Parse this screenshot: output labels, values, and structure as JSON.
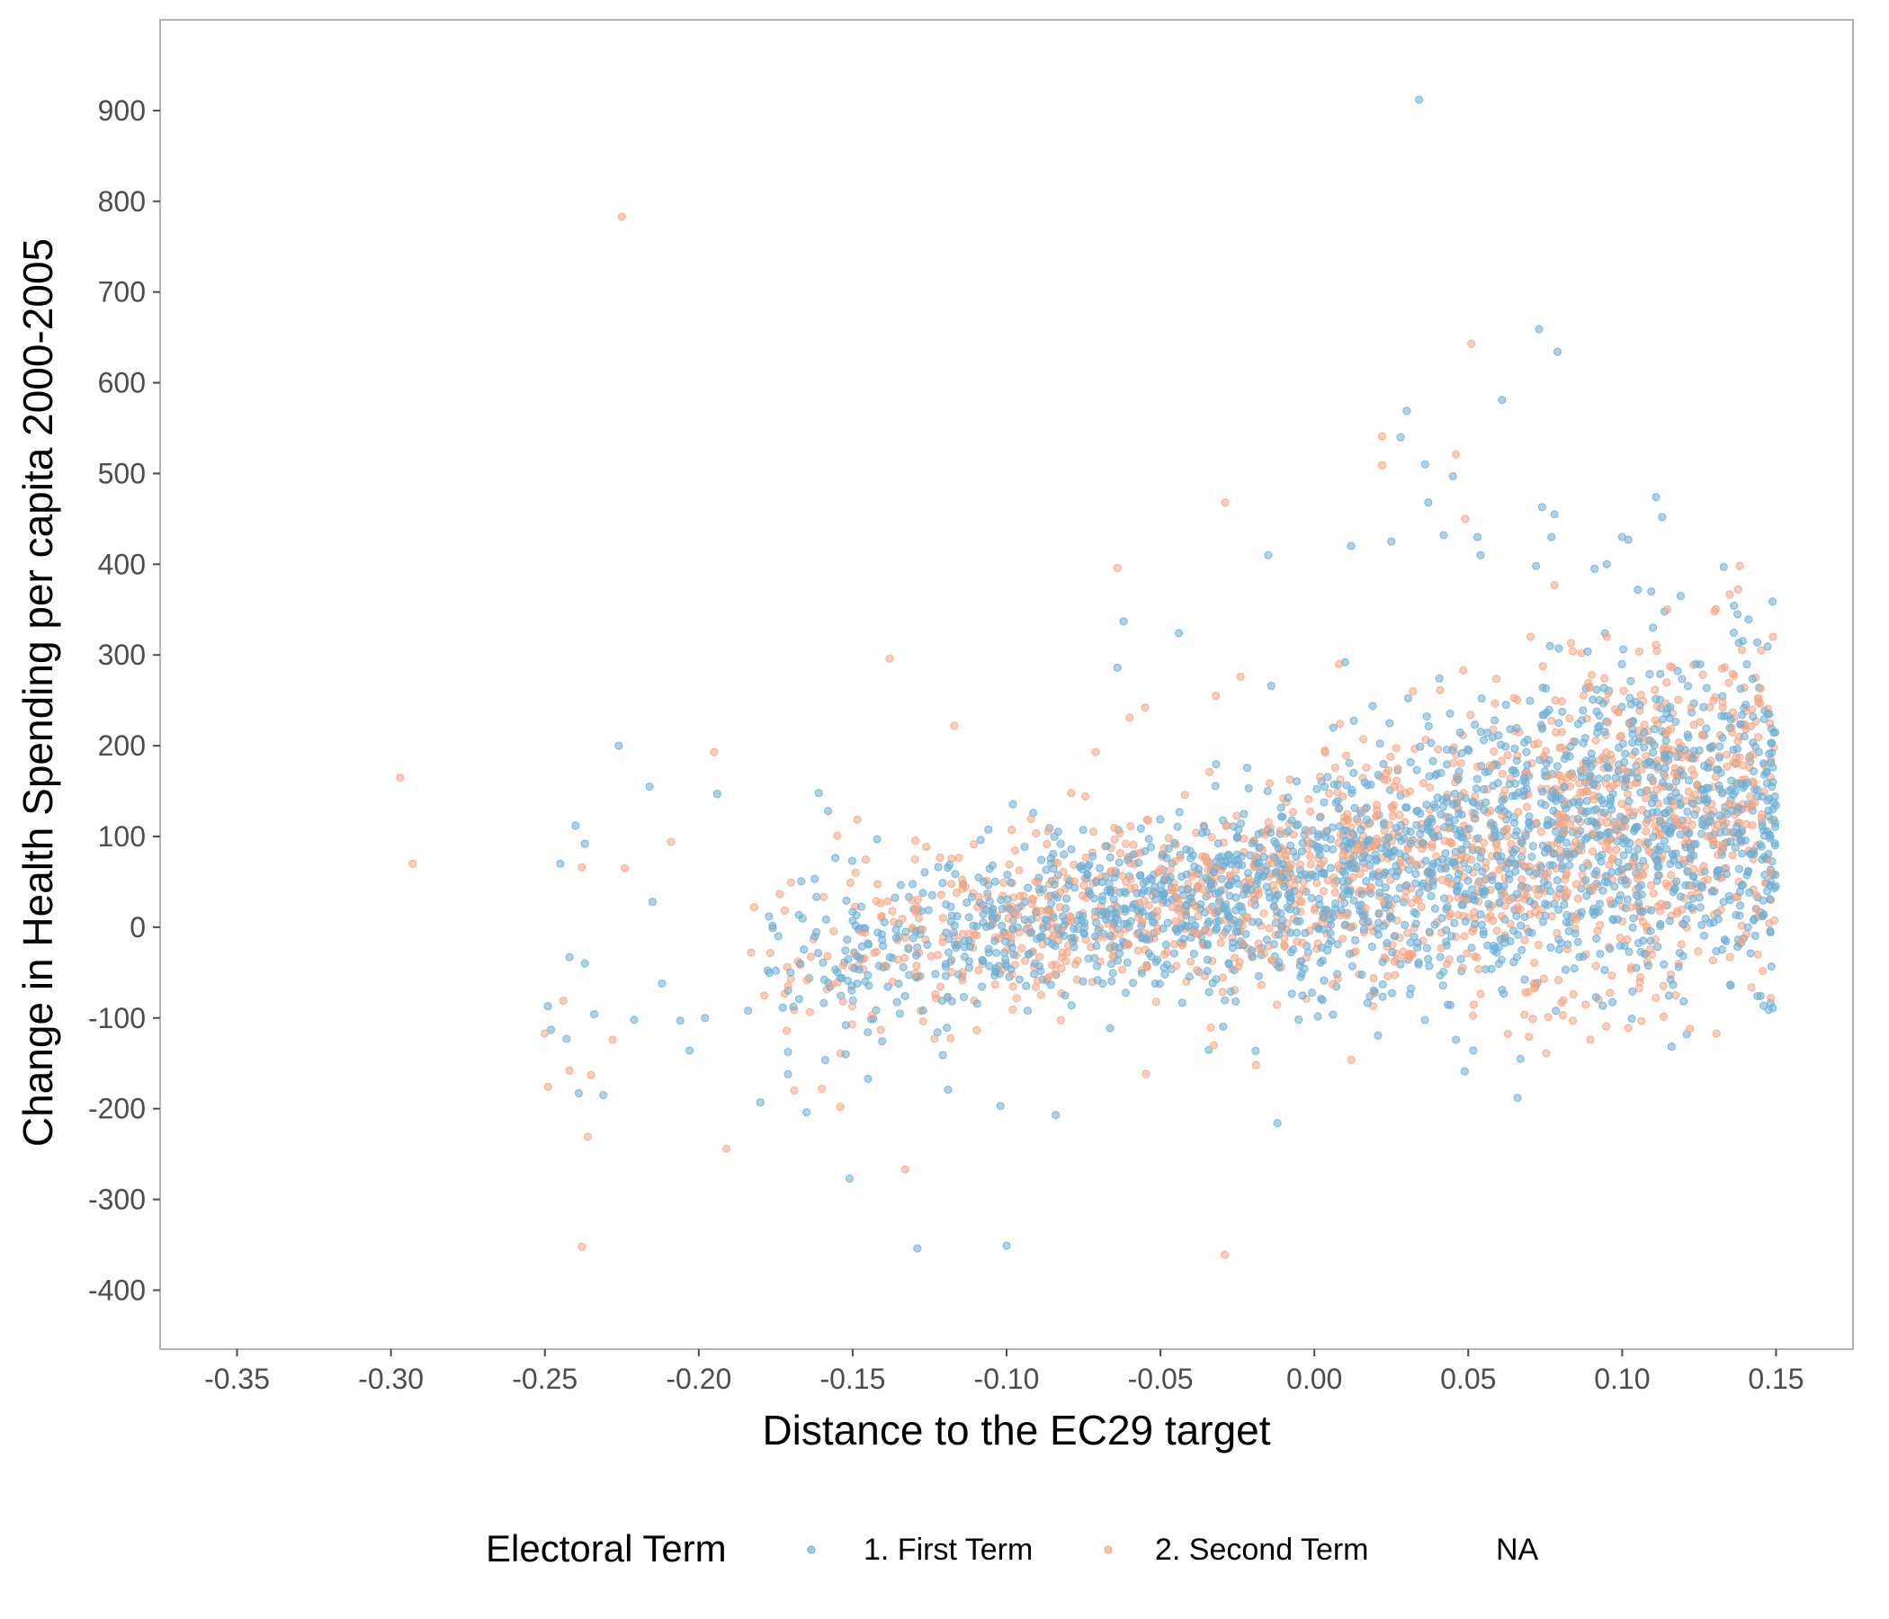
{
  "chart_data": {
    "type": "scatter",
    "xlabel": "Distance to the EC29 target",
    "ylabel": "Change in Health Spending per capita 2000-2005",
    "xlim": [
      -0.375,
      0.175
    ],
    "ylim": [
      -465,
      1000
    ],
    "x_ticks": [
      "-0.35",
      "-0.30",
      "-0.25",
      "-0.20",
      "-0.15",
      "-0.10",
      "-0.05",
      "0.00",
      "0.05",
      "0.10",
      "0.15"
    ],
    "y_ticks": [
      "-400",
      "-300",
      "-200",
      "-100",
      "0",
      "100",
      "200",
      "300",
      "400",
      "500",
      "600",
      "700",
      "800",
      "900"
    ],
    "grid": false,
    "legend": {
      "title": "Electoral Term",
      "position": "bottom",
      "entries": [
        "1. First Term",
        "2. Second Term",
        "NA"
      ]
    },
    "colors": {
      "first_term": "#6baed6",
      "second_term": "#f4a582",
      "panel_border": "#b3b3b3"
    },
    "generated_point_counts": {
      "first_term": 2000,
      "second_term": 1500
    },
    "series": [
      {
        "name": "1. First Term",
        "color": "#6baed6",
        "points": [
          [
            0.034,
            912
          ],
          [
            0.073,
            659
          ],
          [
            0.079,
            634
          ],
          [
            0.061,
            581
          ],
          [
            0.03,
            569
          ],
          [
            0.028,
            540
          ],
          [
            0.036,
            510
          ],
          [
            0.045,
            497
          ],
          [
            0.111,
            474
          ],
          [
            0.074,
            463
          ],
          [
            0.078,
            455
          ],
          [
            0.113,
            452
          ],
          [
            0.037,
            468
          ],
          [
            0.1,
            430
          ],
          [
            0.077,
            430
          ],
          [
            0.042,
            432
          ],
          [
            0.053,
            430
          ],
          [
            0.025,
            425
          ],
          [
            0.012,
            420
          ],
          [
            -0.015,
            410
          ],
          [
            0.054,
            410
          ],
          [
            0.102,
            427
          ],
          [
            0.133,
            397
          ],
          [
            0.095,
            400
          ],
          [
            0.072,
            398
          ],
          [
            -0.062,
            337
          ],
          [
            -0.044,
            324
          ],
          [
            0.11,
            330
          ],
          [
            0.119,
            365
          ],
          [
            0.01,
            292
          ],
          [
            -0.014,
            266
          ],
          [
            -0.064,
            286
          ],
          [
            0.091,
            395
          ],
          [
            0.124,
            290
          ],
          [
            -0.226,
            200
          ],
          [
            -0.216,
            155
          ],
          [
            -0.194,
            147
          ],
          [
            -0.161,
            148
          ],
          [
            -0.158,
            128
          ],
          [
            -0.237,
            92
          ],
          [
            -0.24,
            112
          ],
          [
            -0.245,
            70
          ],
          [
            -0.215,
            28
          ],
          [
            -0.249,
            -87
          ],
          [
            -0.248,
            -113
          ],
          [
            -0.243,
            -123
          ],
          [
            -0.242,
            -33
          ],
          [
            -0.237,
            -40
          ],
          [
            -0.234,
            -96
          ],
          [
            -0.221,
            -102
          ],
          [
            -0.212,
            -62
          ],
          [
            -0.206,
            -103
          ],
          [
            -0.203,
            -136
          ],
          [
            -0.198,
            -100
          ],
          [
            -0.239,
            -183
          ],
          [
            -0.231,
            -185
          ],
          [
            -0.18,
            -193
          ],
          [
            -0.171,
            -162
          ],
          [
            -0.165,
            -204
          ],
          [
            -0.151,
            -277
          ],
          [
            -0.129,
            -354
          ],
          [
            -0.1,
            -351
          ],
          [
            -0.012,
            -216
          ],
          [
            0.066,
            -188
          ],
          [
            0.067,
            -145
          ],
          [
            0.121,
            -118
          ],
          [
            0.046,
            -124
          ],
          [
            0.061,
            -69
          ],
          [
            0.146,
            14
          ],
          [
            0.148,
            98
          ],
          [
            0.149,
            130
          ],
          [
            0.149,
            160
          ],
          [
            -0.084,
            -207
          ],
          [
            -0.102,
            -197
          ],
          [
            -0.119,
            -179
          ],
          [
            -0.145,
            -167
          ],
          [
            -0.184,
            -92
          ],
          [
            -0.175,
            -48
          ],
          [
            -0.167,
            -40
          ]
        ]
      },
      {
        "name": "2. Second Term",
        "color": "#f4a582",
        "points": [
          [
            -0.225,
            783
          ],
          [
            0.051,
            643
          ],
          [
            0.022,
            541
          ],
          [
            0.046,
            521
          ],
          [
            0.022,
            509
          ],
          [
            -0.029,
            468
          ],
          [
            0.049,
            450
          ],
          [
            -0.064,
            396
          ],
          [
            0.078,
            377
          ],
          [
            0.13,
            348
          ],
          [
            0.149,
            320
          ],
          [
            0.145,
            263
          ],
          [
            -0.138,
            296
          ],
          [
            -0.195,
            193
          ],
          [
            -0.297,
            165
          ],
          [
            -0.293,
            70
          ],
          [
            -0.238,
            66
          ],
          [
            -0.224,
            65
          ],
          [
            -0.209,
            94
          ],
          [
            -0.149,
            60
          ],
          [
            -0.182,
            22
          ],
          [
            -0.25,
            -117
          ],
          [
            -0.249,
            -176
          ],
          [
            -0.244,
            -81
          ],
          [
            -0.242,
            -158
          ],
          [
            -0.235,
            -163
          ],
          [
            -0.228,
            -124
          ],
          [
            -0.236,
            -231
          ],
          [
            -0.238,
            -352
          ],
          [
            -0.191,
            -244
          ],
          [
            -0.183,
            -28
          ],
          [
            -0.169,
            -180
          ],
          [
            -0.16,
            -178
          ],
          [
            -0.154,
            -198
          ],
          [
            -0.133,
            -267
          ],
          [
            -0.029,
            -361
          ],
          [
            -0.019,
            -152
          ],
          [
            0.071,
            -101
          ],
          [
            0.122,
            -112
          ],
          [
            0.103,
            -44
          ],
          [
            0.139,
            -13
          ],
          [
            0.148,
            60
          ],
          [
            -0.117,
            222
          ],
          [
            -0.071,
            193
          ],
          [
            -0.079,
            148
          ],
          [
            -0.055,
            242
          ],
          [
            -0.06,
            231
          ],
          [
            -0.024,
            276
          ],
          [
            -0.032,
            255
          ],
          [
            0.008,
            290
          ],
          [
            0.032,
            260
          ],
          [
            0.084,
            304
          ],
          [
            0.095,
            320
          ],
          [
            0.111,
            311
          ],
          [
            0.126,
            212
          ]
        ]
      },
      {
        "name": "NA",
        "color": "",
        "points": []
      }
    ]
  }
}
